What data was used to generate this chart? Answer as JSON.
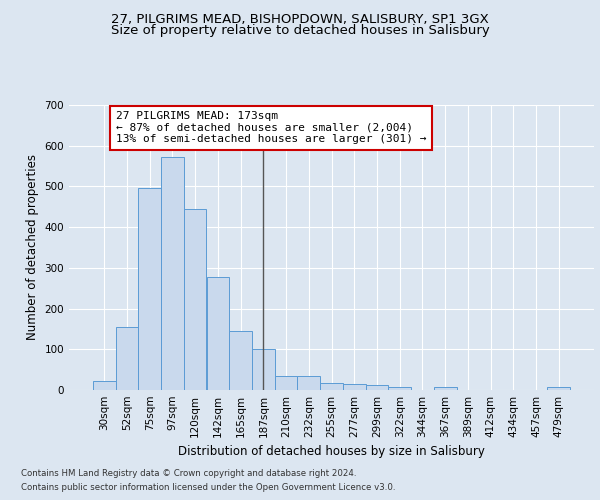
{
  "title1": "27, PILGRIMS MEAD, BISHOPDOWN, SALISBURY, SP1 3GX",
  "title2": "Size of property relative to detached houses in Salisbury",
  "xlabel": "Distribution of detached houses by size in Salisbury",
  "ylabel": "Number of detached properties",
  "bar_labels": [
    "30sqm",
    "52sqm",
    "75sqm",
    "97sqm",
    "120sqm",
    "142sqm",
    "165sqm",
    "187sqm",
    "210sqm",
    "232sqm",
    "255sqm",
    "277sqm",
    "299sqm",
    "322sqm",
    "344sqm",
    "367sqm",
    "389sqm",
    "412sqm",
    "434sqm",
    "457sqm",
    "479sqm"
  ],
  "bar_heights": [
    22,
    155,
    497,
    572,
    445,
    278,
    145,
    100,
    35,
    35,
    16,
    15,
    12,
    7,
    0,
    7,
    0,
    0,
    0,
    0,
    7
  ],
  "bar_color": "#c9d9ed",
  "bar_edge_color": "#5b9bd5",
  "background_color": "#dce6f1",
  "plot_bg_color": "#dce6f1",
  "grid_color": "#ffffff",
  "ylim": [
    0,
    700
  ],
  "yticks": [
    0,
    100,
    200,
    300,
    400,
    500,
    600,
    700
  ],
  "property_bar_index": 7,
  "annotation_line1": "27 PILGRIMS MEAD: 173sqm",
  "annotation_line2": "← 87% of detached houses are smaller (2,004)",
  "annotation_line3": "13% of semi-detached houses are larger (301) →",
  "vline_color": "#555555",
  "annotation_box_color": "#ffffff",
  "annotation_box_edge": "#cc0000",
  "footnote1": "Contains HM Land Registry data © Crown copyright and database right 2024.",
  "footnote2": "Contains public sector information licensed under the Open Government Licence v3.0.",
  "title_fontsize": 9.5,
  "subtitle_fontsize": 9.5,
  "tick_fontsize": 7.5,
  "ylabel_fontsize": 8.5,
  "xlabel_fontsize": 8.5,
  "annot_fontsize": 8.0
}
